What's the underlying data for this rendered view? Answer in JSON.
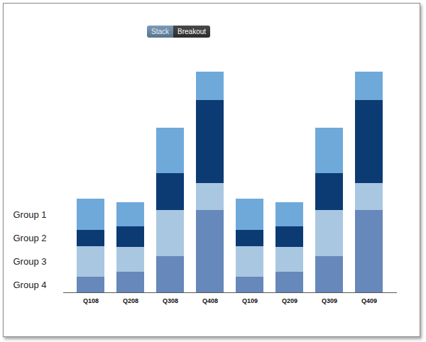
{
  "chart_data": {
    "type": "bar",
    "stacked": true,
    "tick_labels": "x",
    "buttons": [
      "Stack",
      "Breakout"
    ],
    "categories": [
      "Q108",
      "Q208",
      "Q308",
      "Q408",
      "Q109",
      "Q209",
      "Q309",
      "Q409"
    ],
    "ylim": [
      0,
      320
    ],
    "series": [
      {
        "name": "Group 1",
        "color": "#6fa9d9",
        "values": [
          44,
          34,
          64,
          40,
          44,
          34,
          64,
          40
        ]
      },
      {
        "name": "Group 2",
        "color": "#0c3b74",
        "values": [
          23,
          29,
          52,
          117,
          23,
          29,
          52,
          117
        ]
      },
      {
        "name": "Group 3",
        "color": "#a9c7e1",
        "values": [
          43,
          35,
          65,
          38,
          43,
          35,
          65,
          38
        ]
      },
      {
        "name": "Group 4",
        "color": "#6688ba",
        "values": [
          22,
          29,
          51,
          116,
          22,
          29,
          51,
          116
        ]
      }
    ]
  }
}
